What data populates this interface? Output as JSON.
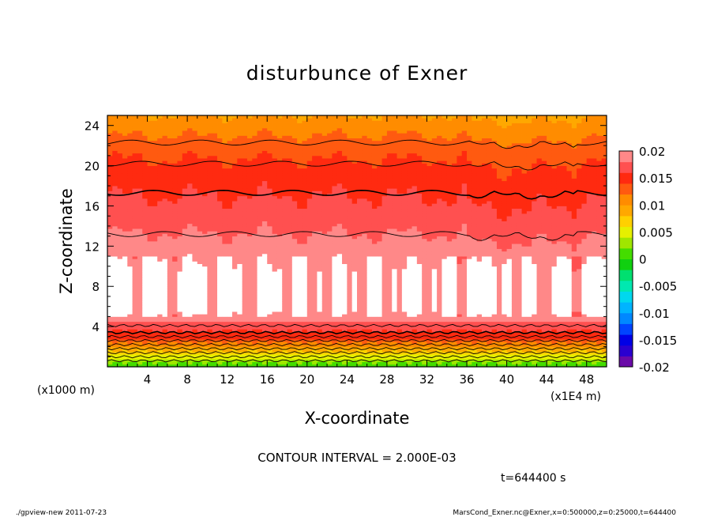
{
  "chart_data": {
    "type": "heatmap",
    "title": "disturbunce of Exner",
    "xlabel": "X-coordinate",
    "ylabel": "Z-coordinate",
    "x_unit": "(x1000 m)",
    "x_unit2": "(x1E4 m)",
    "xlim": [
      0,
      50
    ],
    "ylim": [
      0,
      25
    ],
    "x_ticks": [
      "4",
      "8",
      "12",
      "16",
      "20",
      "24",
      "28",
      "32",
      "36",
      "40",
      "44",
      "48"
    ],
    "y_ticks": [
      "4",
      "8",
      "12",
      "16",
      "20",
      "24"
    ],
    "contour_interval_text": "CONTOUR INTERVAL = 2.000E-03",
    "time_label": "t=644400 s",
    "colorbar": {
      "ticks": [
        "0.02",
        "0.015",
        "0.01",
        "0.005",
        "0",
        "-0.005",
        "-0.01",
        "-0.015",
        "-0.02"
      ],
      "range": [
        -0.02,
        0.02
      ],
      "levels": [
        {
          "from": -0.02,
          "color": "#6a0aa8"
        },
        {
          "from": -0.018,
          "color": "#2a00d0"
        },
        {
          "from": -0.016,
          "color": "#0000e6"
        },
        {
          "from": -0.014,
          "color": "#0044ff"
        },
        {
          "from": -0.012,
          "color": "#0088ff"
        },
        {
          "from": -0.01,
          "color": "#00b4ff"
        },
        {
          "from": -0.008,
          "color": "#00d8ee"
        },
        {
          "from": -0.006,
          "color": "#00e8b0"
        },
        {
          "from": -0.004,
          "color": "#00e070"
        },
        {
          "from": -0.002,
          "color": "#10d010"
        },
        {
          "from": 0.0,
          "color": "#44dd00"
        },
        {
          "from": 0.002,
          "color": "#a0e600"
        },
        {
          "from": 0.004,
          "color": "#e6f000"
        },
        {
          "from": 0.006,
          "color": "#ffd000"
        },
        {
          "from": 0.008,
          "color": "#ffa800"
        },
        {
          "from": 0.01,
          "color": "#ff8c00"
        },
        {
          "from": 0.012,
          "color": "#ff5a10"
        },
        {
          "from": 0.014,
          "color": "#ff2a10"
        },
        {
          "from": 0.016,
          "color": "#ff5050"
        },
        {
          "from": 0.018,
          "color": "#ff8888"
        },
        {
          "from": 0.02,
          "color": "#ffbbbb"
        }
      ]
    },
    "profile": {
      "description_z": [
        0,
        0.4,
        0.8,
        1.2,
        1.6,
        2.0,
        2.4,
        2.8,
        3.2,
        3.6,
        4.0,
        4.5,
        5.0,
        5.5,
        9.5,
        11.0,
        12.5,
        14.0,
        16.0,
        18.0,
        20.0,
        22.0,
        23.5,
        25.0
      ],
      "values": [
        0.0005,
        0.002,
        0.004,
        0.006,
        0.008,
        0.01,
        0.012,
        0.014,
        0.0155,
        0.016,
        0.017,
        0.018,
        0.0195,
        0.0205,
        0.0205,
        0.0195,
        0.0185,
        0.0175,
        0.0165,
        0.0155,
        0.0145,
        0.013,
        0.0115,
        0.01
      ]
    }
  },
  "footer": {
    "left": "./gpview-new  2011-07-23",
    "right": "MarsCond_Exner.nc@Exner,x=0:500000,z=0:25000,t=644400"
  }
}
